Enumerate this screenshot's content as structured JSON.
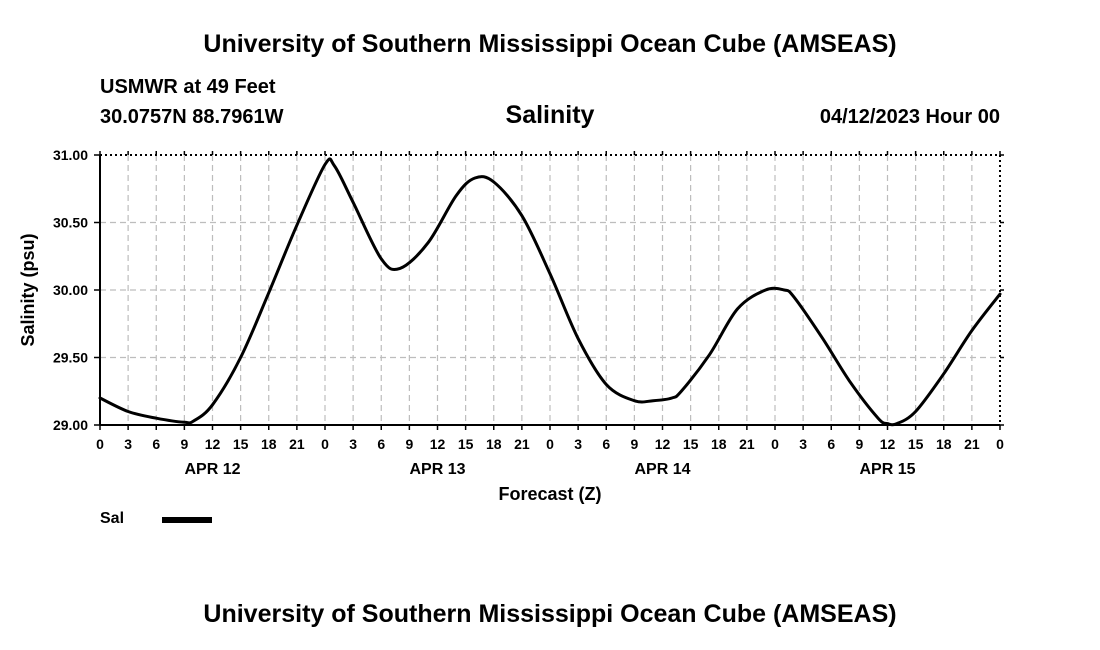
{
  "header": {
    "title": "University of Southern Mississippi Ocean Cube (AMSEAS)",
    "station": "USMWR at 49 Feet",
    "coordinates": "30.0757N  88.7961W",
    "chart_title": "Salinity",
    "datetime": "04/12/2023 Hour 00"
  },
  "footer": {
    "title": "University of Southern Mississippi Ocean Cube (AMSEAS)"
  },
  "legend": {
    "label": "Sal",
    "color": "#000000"
  },
  "chart_data": {
    "type": "line",
    "title": "Salinity",
    "xlabel": "Forecast (Z)",
    "ylabel": "Salinity (psu)",
    "ylim": [
      29.0,
      31.0
    ],
    "xlim": [
      0,
      96
    ],
    "yticks": [
      "29.00",
      "29.50",
      "30.00",
      "30.50",
      "31.00"
    ],
    "ytick_values": [
      29.0,
      29.5,
      30.0,
      30.5,
      31.0
    ],
    "xtick_labels": [
      "0",
      "3",
      "6",
      "9",
      "12",
      "15",
      "18",
      "21",
      "0",
      "3",
      "6",
      "9",
      "12",
      "15",
      "18",
      "21",
      "0",
      "3",
      "6",
      "9",
      "12",
      "15",
      "18",
      "21",
      "0",
      "3",
      "6",
      "9",
      "12",
      "15",
      "18",
      "21",
      "0"
    ],
    "day_labels": [
      {
        "label": "APR 12",
        "hour": 12
      },
      {
        "label": "APR 13",
        "hour": 36
      },
      {
        "label": "APR 14",
        "hour": 60
      },
      {
        "label": "APR 15",
        "hour": 84
      }
    ],
    "grid": true,
    "series": [
      {
        "name": "Sal",
        "x": [
          0,
          3,
          6,
          9,
          10,
          12,
          15,
          18,
          21,
          24,
          25,
          27,
          30,
          32,
          35,
          38,
          40,
          42,
          45,
          48,
          51,
          54,
          57,
          59,
          61,
          62,
          65,
          68,
          71,
          73,
          74,
          77,
          80,
          83,
          84,
          85,
          87,
          90,
          93,
          96
        ],
        "y": [
          29.2,
          29.1,
          29.05,
          29.02,
          29.03,
          29.15,
          29.5,
          29.98,
          30.48,
          30.93,
          30.92,
          30.65,
          30.23,
          30.16,
          30.35,
          30.7,
          30.83,
          30.8,
          30.55,
          30.12,
          29.64,
          29.3,
          29.18,
          29.18,
          29.2,
          29.25,
          29.52,
          29.86,
          30.0,
          30.0,
          29.95,
          29.65,
          29.32,
          29.05,
          29.01,
          29.01,
          29.1,
          29.38,
          29.7,
          29.97
        ]
      }
    ]
  }
}
